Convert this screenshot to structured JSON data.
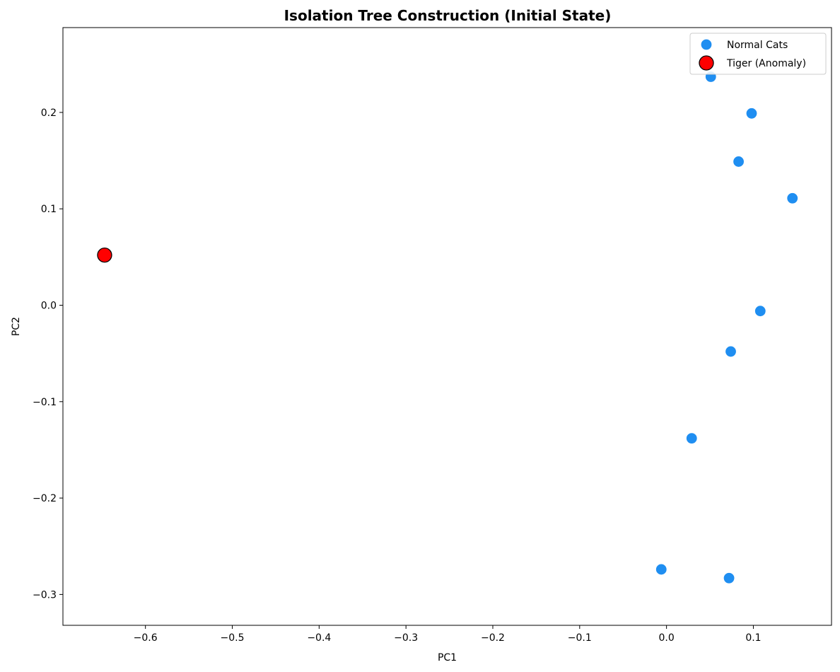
{
  "chart_data": {
    "type": "scatter",
    "title": "Isolation Tree Construction (Initial State)",
    "xlabel": "PC1",
    "ylabel": "PC2",
    "xlim": [
      -0.695,
      0.19
    ],
    "ylim": [
      -0.332,
      0.288
    ],
    "xticks": [
      -0.6,
      -0.5,
      -0.4,
      -0.3,
      -0.2,
      -0.1,
      0.0,
      0.1
    ],
    "xtick_labels": [
      "−0.6",
      "−0.5",
      "−0.4",
      "−0.3",
      "−0.2",
      "−0.1",
      "0.0",
      "0.1"
    ],
    "yticks": [
      -0.3,
      -0.2,
      -0.1,
      0.0,
      0.1,
      0.2
    ],
    "ytick_labels": [
      "−0.3",
      "−0.2",
      "−0.1",
      "0.0",
      "0.1",
      "0.2"
    ],
    "grid": false,
    "legend_position": "top-right",
    "series": [
      {
        "name": "Normal Cats",
        "color": "#1f8ef1",
        "marker": "circle",
        "edge_color": "#1f8ef1",
        "points": [
          {
            "x": 0.051,
            "y": 0.237
          },
          {
            "x": 0.098,
            "y": 0.199
          },
          {
            "x": 0.083,
            "y": 0.149
          },
          {
            "x": 0.145,
            "y": 0.111
          },
          {
            "x": 0.108,
            "y": -0.006
          },
          {
            "x": 0.074,
            "y": -0.048
          },
          {
            "x": 0.029,
            "y": -0.138
          },
          {
            "x": -0.006,
            "y": -0.274
          },
          {
            "x": 0.072,
            "y": -0.283
          }
        ]
      },
      {
        "name": "Tiger (Anomaly)",
        "color": "#ff0000",
        "marker": "circle",
        "edge_color": "#000000",
        "points": [
          {
            "x": -0.647,
            "y": 0.052
          }
        ]
      }
    ]
  }
}
